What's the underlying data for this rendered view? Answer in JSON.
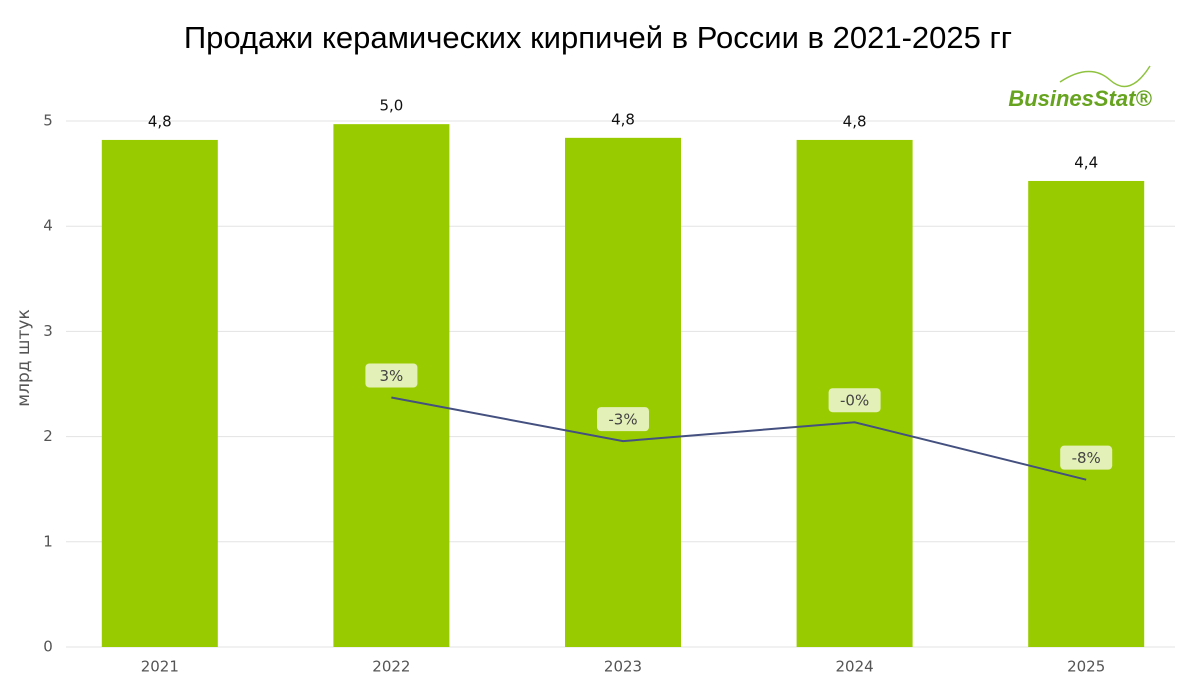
{
  "chart_data": {
    "type": "bar",
    "title": "Продажи керамических кирпичей в России в 2021-2025 гг",
    "logo": "BusinesStat®",
    "y_label": "млрд штук",
    "categories": [
      "2021",
      "2022",
      "2023",
      "2024",
      "2025"
    ],
    "values": [
      4.82,
      4.97,
      4.84,
      4.82,
      4.43
    ],
    "value_labels": [
      "4,8",
      "5,0",
      "4,8",
      "4,8",
      "4,4"
    ],
    "color": "#99cc00",
    "ylim": [
      0,
      5.2
    ],
    "yticks": [
      0,
      1,
      2,
      3,
      4,
      5
    ],
    "grid": true,
    "y2lim": [
      -31.3,
      43.9
    ],
    "line": {
      "type": "line",
      "axis": "y2",
      "color": "#44507f",
      "values": [
        null,
        3,
        -3,
        -0.4,
        -8.3
      ],
      "value_labels": [
        null,
        "3%",
        "-3%",
        "-0%",
        "-8%"
      ]
    }
  }
}
